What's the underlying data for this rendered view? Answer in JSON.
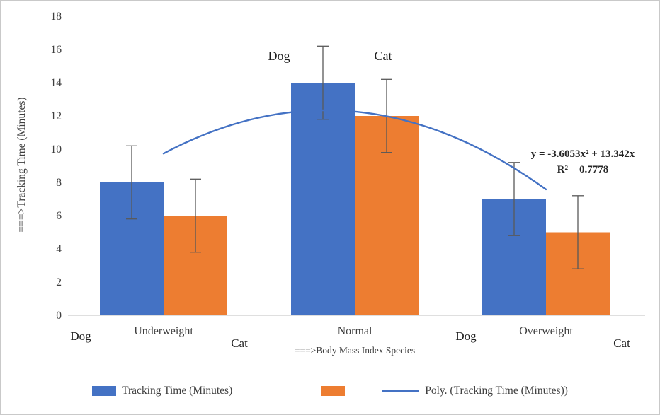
{
  "chart_data": {
    "type": "bar",
    "categories": [
      "Underweight",
      "Normal",
      "Overweight"
    ],
    "series": [
      {
        "name": "Dog",
        "color": "#4472C4",
        "values": [
          8,
          14,
          7
        ],
        "error": [
          2.2,
          2.2,
          2.2
        ]
      },
      {
        "name": "Cat",
        "color": "#ED7D31",
        "values": [
          6,
          12,
          5
        ],
        "error": [
          2.2,
          2.2,
          2.2
        ]
      }
    ],
    "ylim": [
      0,
      18
    ],
    "ytick_step": 2,
    "ylabel": "===>Tracking Time (Minutes)",
    "xlabel": "===>Body Mass Index Species",
    "grid": false,
    "legend_position": "bottom",
    "series_labels_above_normal": [
      "Dog",
      "Cat"
    ],
    "x_axis_species_labels": [
      "Dog",
      "Cat",
      "Dog",
      "Cat"
    ],
    "error_bar_color": "#595959",
    "axis_line_color": "#BFBFBF",
    "trendline": {
      "type": "polynomial",
      "order": 2,
      "equation": "y = -3.6053x² + 13.342x",
      "r_squared": "R² = 0.7778",
      "color": "#4472C4",
      "coeff_a": -3.6053,
      "coeff_b": 13.342,
      "coeff_c": 0
    },
    "legend": [
      {
        "label": "Tracking Time (Minutes)",
        "swatch": "blue-rect"
      },
      {
        "label": "",
        "swatch": "orange-rect"
      },
      {
        "label": "Poly. (Tracking Time (Minutes))",
        "swatch": "blue-line"
      }
    ]
  }
}
